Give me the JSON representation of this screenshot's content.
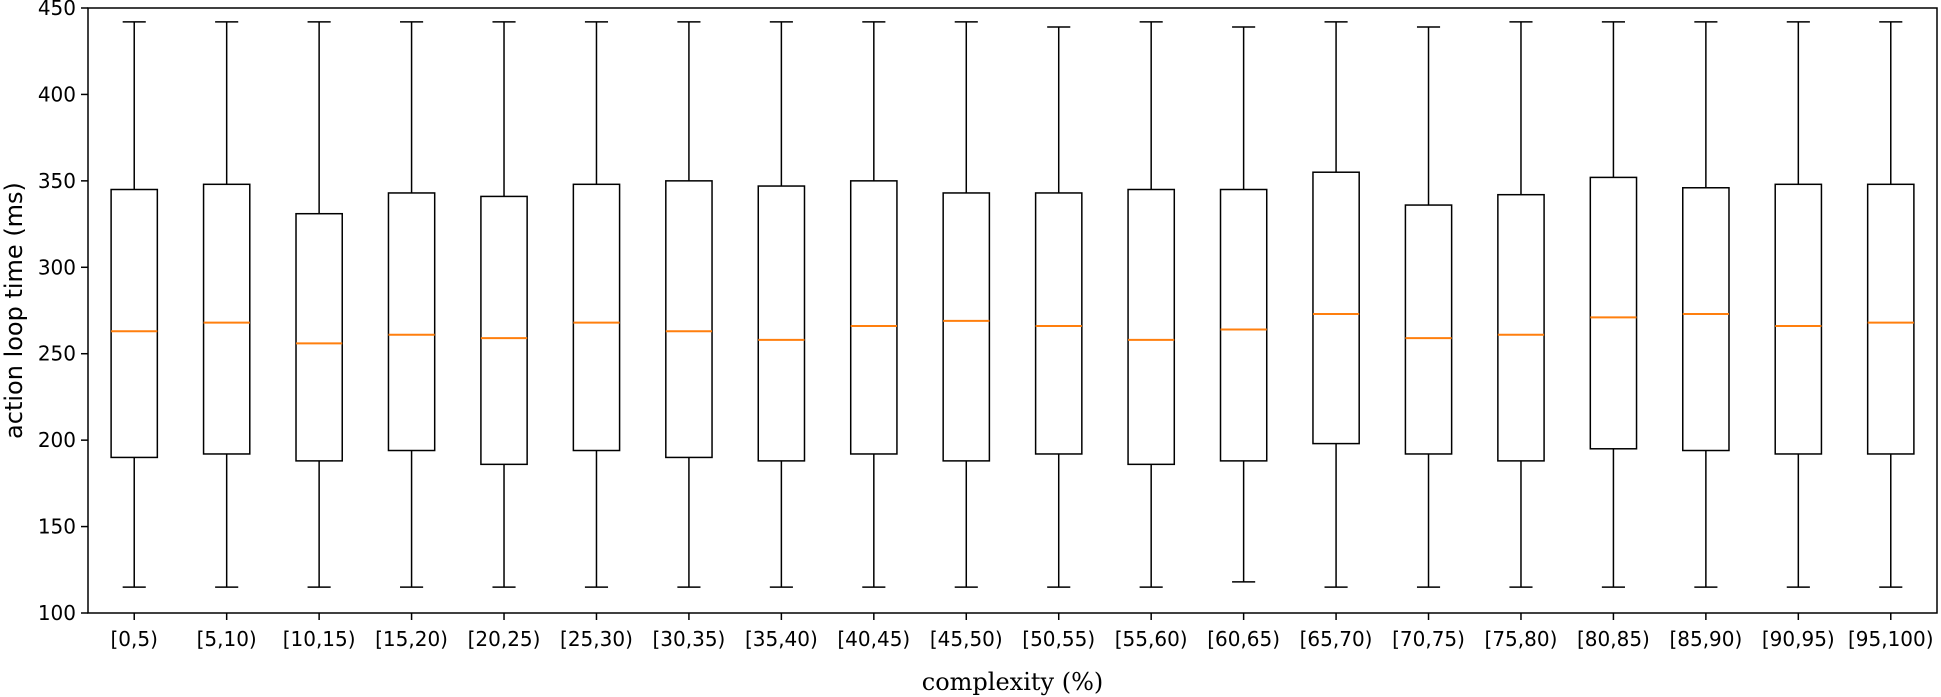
{
  "chart_data": {
    "type": "boxplot",
    "title": "",
    "xlabel": "complexity (%)",
    "ylabel": "action loop time (ms)",
    "ylim": [
      100,
      450
    ],
    "yticks": [
      100,
      150,
      200,
      250,
      300,
      350,
      400,
      450
    ],
    "grid": false,
    "categories": [
      "[0,5)",
      "[5,10)",
      "[10,15)",
      "[15,20)",
      "[20,25)",
      "[25,30)",
      "[30,35)",
      "[35,40)",
      "[40,45)",
      "[45,50)",
      "[50,55)",
      "[55,60)",
      "[60,65)",
      "[65,70)",
      "[70,75)",
      "[75,80)",
      "[80,85)",
      "[85,90)",
      "[90,95)",
      "[95,100)"
    ],
    "whisker_low": [
      115,
      115,
      115,
      115,
      115,
      115,
      115,
      115,
      115,
      115,
      115,
      115,
      118,
      115,
      115,
      115,
      115,
      115,
      115,
      115
    ],
    "q1": [
      190,
      192,
      188,
      194,
      186,
      194,
      190,
      188,
      192,
      188,
      192,
      186,
      188,
      198,
      192,
      188,
      195,
      194,
      192,
      192
    ],
    "median": [
      263,
      268,
      256,
      261,
      259,
      268,
      263,
      258,
      266,
      269,
      266,
      258,
      264,
      273,
      259,
      261,
      271,
      273,
      266,
      268
    ],
    "q3": [
      345,
      348,
      331,
      343,
      341,
      348,
      350,
      347,
      350,
      343,
      343,
      345,
      345,
      355,
      336,
      342,
      352,
      346,
      348,
      348
    ],
    "whisker_high": [
      442,
      442,
      442,
      442,
      442,
      442,
      442,
      442,
      442,
      442,
      439,
      442,
      439,
      442,
      439,
      442,
      442,
      442,
      442,
      442
    ],
    "box_color": "#000000",
    "median_color": "#ff7f0e"
  }
}
